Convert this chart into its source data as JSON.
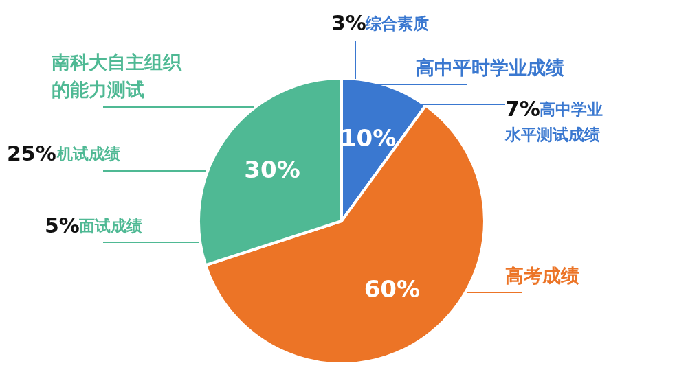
{
  "chart_data": {
    "type": "pie",
    "categories": [
      "高中平时学业成绩",
      "高考成绩",
      "南科大自主组织的能力测试"
    ],
    "values": [
      10,
      60,
      30
    ],
    "colors": [
      "#3a78d0",
      "#ec7426",
      "#4fb994"
    ],
    "value_labels": [
      "10%",
      "60%",
      "30%"
    ],
    "annotations": [
      "3%综合素质",
      "7%高中学业水平测试成绩",
      "25%机试成绩",
      "5%面试成绩"
    ]
  }
}
